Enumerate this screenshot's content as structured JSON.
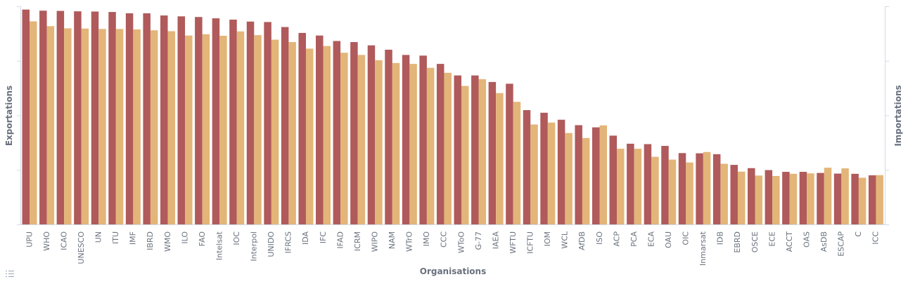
{
  "chart_data": {
    "type": "bar",
    "xlabel": "Organisations",
    "ylabel_left": "Exportations",
    "ylabel_right": "Importations",
    "ylim": [
      0,
      100
    ],
    "grid": false,
    "categories": [
      "UPU",
      "WHO",
      "ICAO",
      "UNESCO",
      "UN",
      "ITU",
      "IMF",
      "IBRD",
      "WMO",
      "ILO",
      "FAO",
      "Intelsat",
      "IOC",
      "Interpol",
      "UNIDO",
      "IFRCS",
      "IDA",
      "IFC",
      "IFAD",
      "ICRM",
      "WIPO",
      "NAM",
      "WTrO",
      "IMO",
      "CCC",
      "WToO",
      "G-77",
      "IAEA",
      "WFTU",
      "ICFTU",
      "IOM",
      "WCL",
      "AfDB",
      "ISO",
      "ACP",
      "PCA",
      "ECA",
      "OAU",
      "OIC",
      "Inmarsat",
      "IDB",
      "EBRD",
      "OSCE",
      "ECE",
      "ACCT",
      "OAS",
      "AsDB",
      "ESCAP",
      "C",
      "ICC"
    ],
    "series": [
      {
        "name": "Exportations",
        "color": "#b05a5b",
        "values": [
          98.5,
          98.0,
          97.9,
          97.7,
          97.6,
          97.4,
          96.8,
          96.8,
          95.8,
          95.4,
          95.1,
          94.5,
          93.9,
          93.0,
          92.8,
          90.5,
          87.8,
          86.6,
          84.1,
          83.6,
          82.1,
          80.1,
          77.7,
          77.4,
          73.6,
          68.3,
          68.3,
          65.3,
          64.5,
          52.4,
          51.2,
          48.0,
          45.5,
          44.5,
          40.7,
          37.0,
          36.8,
          36.0,
          32.7,
          32.6,
          32.2,
          27.3,
          25.8,
          24.9,
          24.1,
          24.1,
          23.6,
          23.3,
          23.2,
          22.5
        ]
      },
      {
        "name": "Importations",
        "color": "#e3b579",
        "values": [
          93.1,
          90.9,
          89.9,
          89.8,
          89.6,
          89.6,
          89.4,
          89.0,
          88.6,
          86.6,
          87.2,
          86.5,
          88.5,
          86.8,
          84.7,
          83.6,
          80.6,
          81.8,
          78.7,
          77.7,
          75.3,
          74.0,
          73.6,
          71.8,
          69.5,
          63.5,
          66.6,
          60.2,
          56.2,
          45.8,
          46.7,
          41.9,
          39.6,
          45.4,
          34.7,
          34.7,
          31.0,
          29.7,
          28.4,
          33.2,
          27.8,
          24.2,
          22.4,
          22.2,
          23.2,
          23.4,
          26.0,
          25.7,
          21.4,
          22.6
        ]
      }
    ]
  }
}
